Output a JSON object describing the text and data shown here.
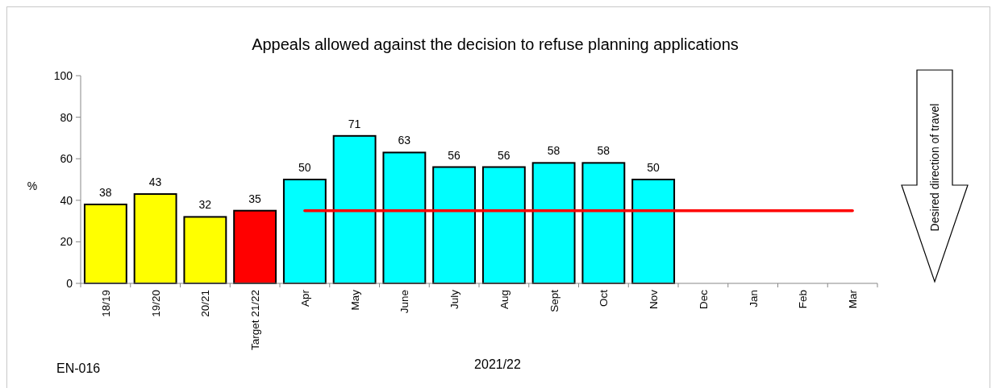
{
  "chart_data": {
    "type": "bar",
    "title": "Appeals allowed against the decision to refuse planning applications",
    "xlabel": "2021/22",
    "ylabel": "%",
    "annotations": [
      "EN-016",
      "Desired direction of travel"
    ],
    "categories": [
      "18/19",
      "19/20",
      "20/21",
      "Target 21/22",
      "Apr",
      "May",
      "June",
      "July",
      "Aug",
      "Sept",
      "Oct",
      "Nov",
      "Dec",
      "Jan",
      "Feb",
      "Mar"
    ],
    "series": [
      {
        "colors": [
          "#ffff00",
          "#ffff00",
          "#ffff00",
          "#ff0000",
          "#00ffff",
          "#00ffff",
          "#00ffff",
          "#00ffff",
          "#00ffff",
          "#00ffff",
          "#00ffff",
          "#00ffff",
          null,
          null,
          null,
          null
        ],
        "values": [
          38,
          43,
          32,
          35,
          50,
          71,
          63,
          56,
          56,
          58,
          58,
          50,
          null,
          null,
          null,
          null
        ],
        "value_labels": [
          "38",
          "43",
          "32",
          "35",
          "50",
          "71",
          "63",
          "56",
          "56",
          "58",
          "58",
          "50",
          null,
          null,
          null,
          null
        ]
      },
      {
        "type": "line",
        "color": "#ff0000",
        "values": [
          null,
          null,
          null,
          null,
          35,
          35,
          35,
          35,
          35,
          35,
          35,
          35,
          35,
          35,
          35,
          35
        ]
      }
    ],
    "ylim": [
      0,
      100
    ],
    "yticks": [
      0,
      20,
      40,
      60,
      80,
      100
    ]
  }
}
